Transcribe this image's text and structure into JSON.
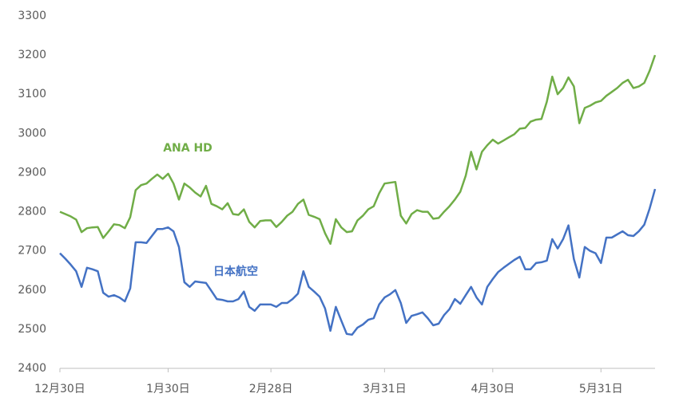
{
  "chart_data": {
    "type": "line",
    "categories": [
      "12月30日",
      null,
      null,
      null,
      null,
      null,
      null,
      null,
      null,
      null,
      null,
      null,
      null,
      null,
      null,
      null,
      null,
      null,
      null,
      null,
      "1月30日",
      null,
      null,
      null,
      null,
      null,
      null,
      null,
      null,
      null,
      null,
      null,
      null,
      null,
      null,
      null,
      null,
      null,
      null,
      "2月28日",
      null,
      null,
      null,
      null,
      null,
      null,
      null,
      null,
      null,
      null,
      null,
      null,
      null,
      null,
      null,
      null,
      null,
      null,
      null,
      null,
      "3月31日",
      null,
      null,
      null,
      null,
      null,
      null,
      null,
      null,
      null,
      null,
      null,
      null,
      null,
      null,
      null,
      null,
      null,
      null,
      null,
      "4月30日",
      null,
      null,
      null,
      null,
      null,
      null,
      null,
      null,
      null,
      null,
      null,
      null,
      null,
      null,
      null,
      null,
      null,
      null,
      null,
      "5月31日",
      null,
      null,
      null,
      null,
      null,
      null,
      null,
      null,
      null,
      null
    ],
    "series": [
      {
        "name": "ANA HD",
        "color": "#70ad47",
        "values": [
          2800,
          2794,
          2788,
          2780,
          2748,
          2758,
          2760,
          2761,
          2733,
          2750,
          2768,
          2766,
          2758,
          2786,
          2855,
          2868,
          2872,
          2884,
          2895,
          2884,
          2897,
          2872,
          2831,
          2872,
          2862,
          2849,
          2839,
          2866,
          2820,
          2814,
          2806,
          2822,
          2794,
          2792,
          2806,
          2774,
          2760,
          2776,
          2778,
          2778,
          2761,
          2774,
          2790,
          2800,
          2820,
          2831,
          2792,
          2787,
          2781,
          2745,
          2718,
          2781,
          2760,
          2748,
          2750,
          2778,
          2790,
          2806,
          2814,
          2847,
          2872,
          2874,
          2876,
          2790,
          2770,
          2794,
          2804,
          2800,
          2800,
          2782,
          2784,
          2800,
          2814,
          2831,
          2851,
          2892,
          2953,
          2908,
          2953,
          2970,
          2984,
          2974,
          2982,
          2990,
          2998,
          3012,
          3014,
          3030,
          3035,
          3037,
          3081,
          3145,
          3100,
          3116,
          3143,
          3120,
          3026,
          3065,
          3071,
          3079,
          3083,
          3096,
          3106,
          3116,
          3129,
          3137,
          3116,
          3120,
          3129,
          3160,
          3200
        ]
      },
      {
        "name": "日本航空",
        "color": "#4472c4",
        "values": [
          2694,
          2680,
          2665,
          2648,
          2608,
          2657,
          2653,
          2648,
          2593,
          2583,
          2587,
          2581,
          2571,
          2604,
          2722,
          2722,
          2720,
          2738,
          2756,
          2756,
          2760,
          2750,
          2710,
          2620,
          2608,
          2622,
          2620,
          2618,
          2598,
          2577,
          2575,
          2571,
          2571,
          2577,
          2596,
          2557,
          2547,
          2563,
          2563,
          2563,
          2557,
          2567,
          2567,
          2577,
          2591,
          2648,
          2608,
          2596,
          2583,
          2553,
          2496,
          2557,
          2522,
          2488,
          2486,
          2504,
          2512,
          2524,
          2528,
          2563,
          2581,
          2589,
          2600,
          2567,
          2516,
          2534,
          2538,
          2543,
          2528,
          2510,
          2514,
          2536,
          2551,
          2577,
          2565,
          2587,
          2608,
          2581,
          2563,
          2608,
          2628,
          2646,
          2657,
          2667,
          2677,
          2685,
          2653,
          2653,
          2669,
          2671,
          2675,
          2730,
          2706,
          2730,
          2765,
          2679,
          2632,
          2710,
          2700,
          2694,
          2669,
          2734,
          2734,
          2742,
          2750,
          2740,
          2738,
          2750,
          2767,
          2808,
          2858
        ]
      }
    ],
    "ylim": [
      2400,
      3300
    ],
    "yticks": [
      2400,
      2500,
      2600,
      2700,
      2800,
      2900,
      3000,
      3100,
      3200,
      3300
    ],
    "grid": false
  }
}
